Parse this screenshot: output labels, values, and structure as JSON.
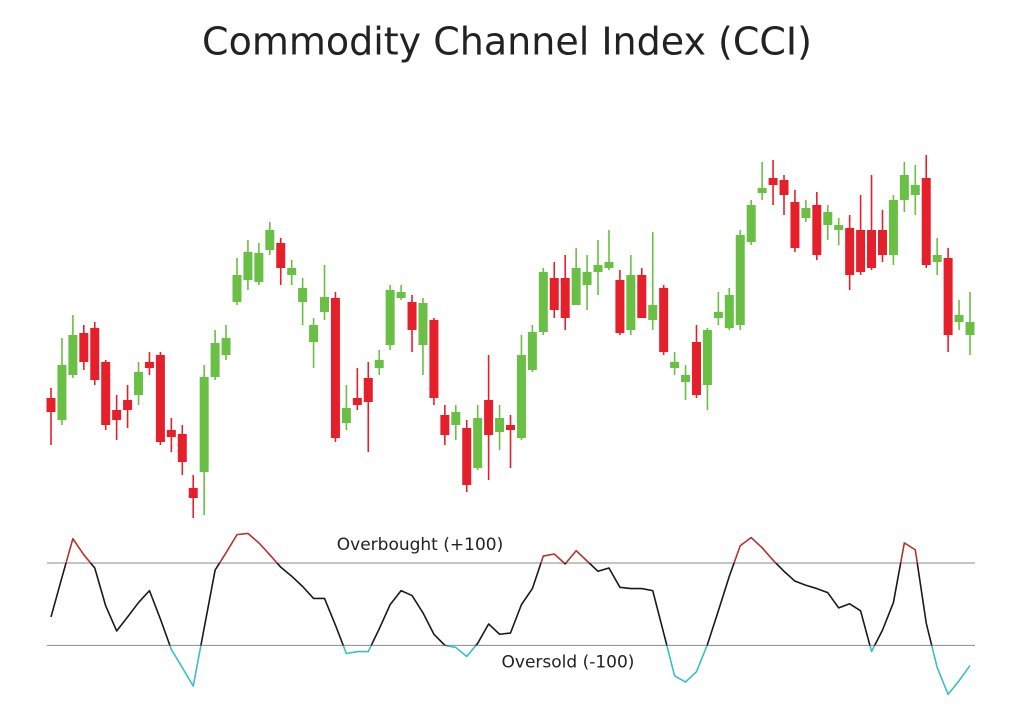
{
  "title": "Commodity Channel Index (CCI)",
  "chart_data": [
    {
      "type": "candlestick",
      "up_color": "#6abf45",
      "down_color": "#e5202a",
      "wick_color": "#6abf45",
      "ylim": [
        0,
        400
      ],
      "open": [
        132,
        110,
        155,
        197,
        202,
        168,
        120,
        130,
        135,
        168,
        175,
        100,
        96,
        42,
        58,
        153,
        175,
        228,
        250,
        248,
        280,
        287,
        255,
        228,
        188,
        218,
        232,
        107,
        132,
        152,
        162,
        185,
        232,
        228,
        185,
        210,
        115,
        105,
        102,
        62,
        130,
        98,
        105,
        92,
        160,
        198,
        252,
        252,
        225,
        245,
        258,
        262,
        250,
        200,
        255,
        210,
        242,
        162,
        148,
        188,
        145,
        212,
        202,
        205,
        288,
        337,
        352,
        350,
        328,
        312,
        325,
        305,
        300,
        302,
        300,
        300,
        300,
        275,
        330,
        335,
        352,
        268,
        272,
        208,
        195
      ],
      "high": [
        142,
        192,
        215,
        205,
        208,
        170,
        135,
        145,
        168,
        178,
        178,
        112,
        105,
        55,
        165,
        200,
        205,
        272,
        290,
        287,
        308,
        292,
        270,
        252,
        212,
        265,
        238,
        145,
        162,
        168,
        180,
        245,
        245,
        235,
        232,
        212,
        125,
        125,
        110,
        125,
        175,
        125,
        115,
        195,
        205,
        262,
        268,
        275,
        282,
        275,
        290,
        300,
        260,
        275,
        262,
        298,
        245,
        178,
        165,
        205,
        202,
        238,
        242,
        300,
        330,
        368,
        370,
        355,
        340,
        330,
        338,
        325,
        312,
        315,
        335,
        355,
        320,
        335,
        368,
        365,
        375,
        292,
        282,
        230,
        238
      ],
      "low": [
        85,
        105,
        152,
        160,
        145,
        100,
        90,
        102,
        125,
        155,
        85,
        78,
        55,
        12,
        15,
        150,
        170,
        225,
        240,
        245,
        275,
        245,
        245,
        205,
        162,
        210,
        88,
        100,
        120,
        78,
        155,
        180,
        230,
        178,
        155,
        125,
        85,
        90,
        38,
        60,
        50,
        80,
        62,
        90,
        158,
        195,
        212,
        200,
        225,
        220,
        235,
        260,
        195,
        195,
        212,
        200,
        175,
        155,
        130,
        132,
        120,
        205,
        200,
        200,
        285,
        330,
        325,
        315,
        278,
        308,
        270,
        290,
        285,
        240,
        255,
        260,
        268,
        265,
        318,
        315,
        262,
        255,
        178,
        200,
        175
      ],
      "close": [
        118,
        165,
        195,
        168,
        150,
        105,
        110,
        120,
        158,
        162,
        88,
        93,
        68,
        32,
        153,
        187,
        192,
        255,
        278,
        277,
        300,
        262,
        262,
        242,
        205,
        233,
        92,
        122,
        125,
        128,
        170,
        240,
        238,
        200,
        227,
        132,
        95,
        118,
        45,
        112,
        95,
        112,
        100,
        175,
        198,
        258,
        220,
        212,
        262,
        258,
        265,
        268,
        197,
        255,
        212,
        225,
        178,
        168,
        155,
        135,
        200,
        218,
        235,
        295,
        325,
        342,
        345,
        335,
        282,
        322,
        275,
        318,
        305,
        255,
        258,
        262,
        275,
        330,
        355,
        345,
        265,
        275,
        195,
        215,
        208
      ]
    },
    {
      "type": "line",
      "color": "#1a1a1a",
      "above_color": "#b8322c",
      "below_color": "#3bbdcb",
      "ylim": [
        -240,
        190
      ],
      "levels": [
        {
          "value": 100,
          "label": "Overbought (+100)"
        },
        {
          "value": -100,
          "label": "Oversold (-100)"
        }
      ],
      "values": [
        -31,
        65,
        159,
        120,
        88,
        -4,
        -65,
        -31,
        4,
        33,
        -36,
        -110,
        -154,
        -199,
        -58,
        83,
        125,
        169,
        172,
        149,
        120,
        90,
        68,
        43,
        14,
        14,
        -51,
        -120,
        -115,
        -115,
        -60,
        -1,
        33,
        21,
        -21,
        -73,
        -100,
        -105,
        -127,
        -95,
        -48,
        -73,
        -70,
        -1,
        38,
        117,
        122,
        98,
        130,
        105,
        80,
        88,
        41,
        38,
        38,
        33,
        -70,
        -174,
        -189,
        -164,
        -98,
        -16,
        68,
        142,
        162,
        137,
        107,
        80,
        56,
        46,
        38,
        28,
        -9,
        1,
        -16,
        -115,
        -63,
        4,
        149,
        132,
        -46,
        -154,
        -219,
        -186,
        -149
      ]
    }
  ]
}
